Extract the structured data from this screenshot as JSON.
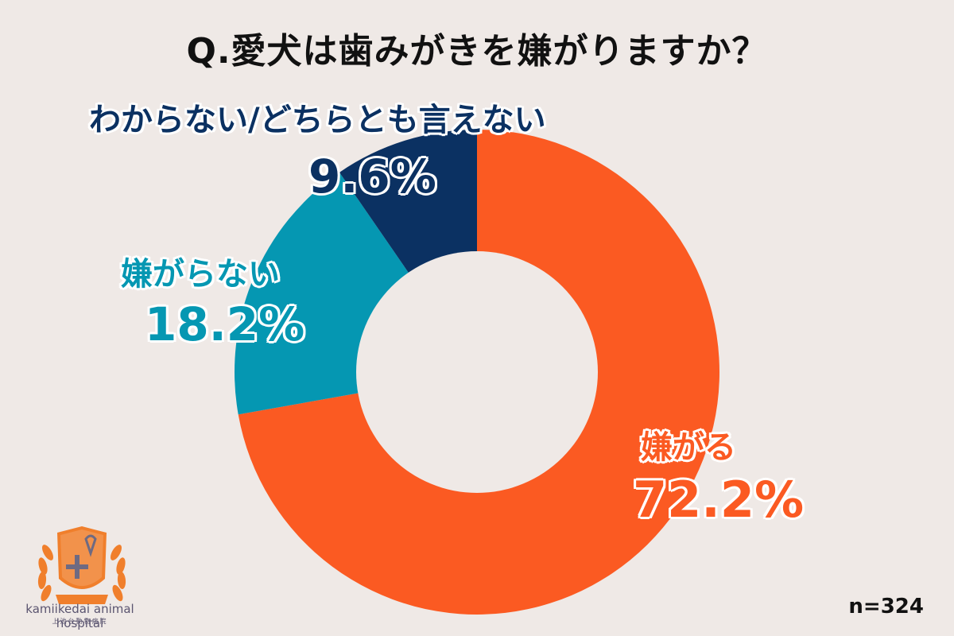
{
  "title": "Q.愛犬は歯みがきを嫌がりますか？",
  "sample_size": "n=324",
  "labels": {
    "unknown": {
      "name": "わからない/どちらとも言えない",
      "value": "9.6%"
    },
    "dislike_not": {
      "name": "嫌がらない",
      "value": "18.2%"
    },
    "dislike": {
      "name": "嫌がる",
      "value": "72.2%"
    }
  },
  "logo": {
    "name": "kamiikedai animal hospital",
    "sub": "上池台動物病院",
    "ribbon": "kamiikedai"
  },
  "colors": {
    "dislike": "#fb5a22",
    "dislike_not": "#0597b2",
    "unknown": "#0b3162",
    "background": "#efe9e6"
  },
  "chart_data": {
    "type": "pie",
    "subtype": "donut",
    "title": "Q.愛犬は歯みがきを嫌がりますか？",
    "categories": [
      "嫌がる",
      "嫌がらない",
      "わからない/どちらとも言えない"
    ],
    "values": [
      72.2,
      18.2,
      9.6
    ],
    "unit": "%",
    "colors": [
      "#fb5a22",
      "#0597b2",
      "#0b3162"
    ],
    "start_angle": "12 o'clock, clockwise",
    "annotation": "n=324",
    "legend": "none (direct labels)"
  }
}
